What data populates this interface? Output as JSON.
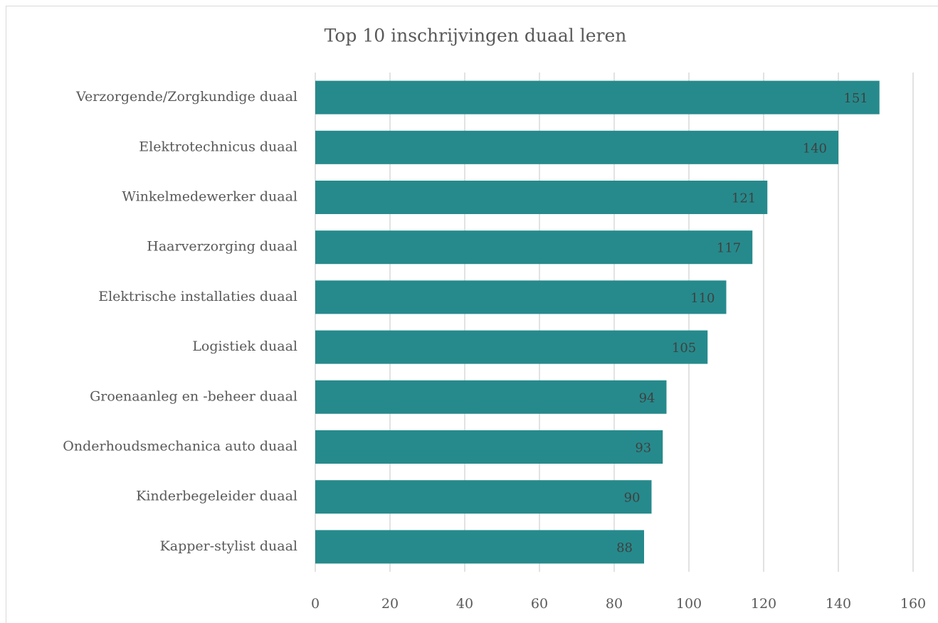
{
  "chart_data": {
    "type": "bar",
    "orientation": "horizontal",
    "title": "Top 10 inschrijvingen duaal leren",
    "categories": [
      "Verzorgende/Zorgkundige duaal",
      "Elektrotechnicus duaal",
      "Winkelmedewerker duaal",
      "Haarverzorging duaal",
      "Elektrische installaties duaal",
      "Logistiek duaal",
      "Groenaanleg en -beheer duaal",
      "Onderhoudsmechanica auto duaal",
      "Kinderbegeleider duaal",
      "Kapper-stylist duaal"
    ],
    "values": [
      151,
      140,
      121,
      117,
      110,
      105,
      94,
      93,
      90,
      88
    ],
    "color": "#268a8c",
    "xlim": [
      0,
      160
    ],
    "xticks": [
      0,
      20,
      40,
      60,
      80,
      100,
      120,
      140,
      160
    ],
    "grid": true
  }
}
